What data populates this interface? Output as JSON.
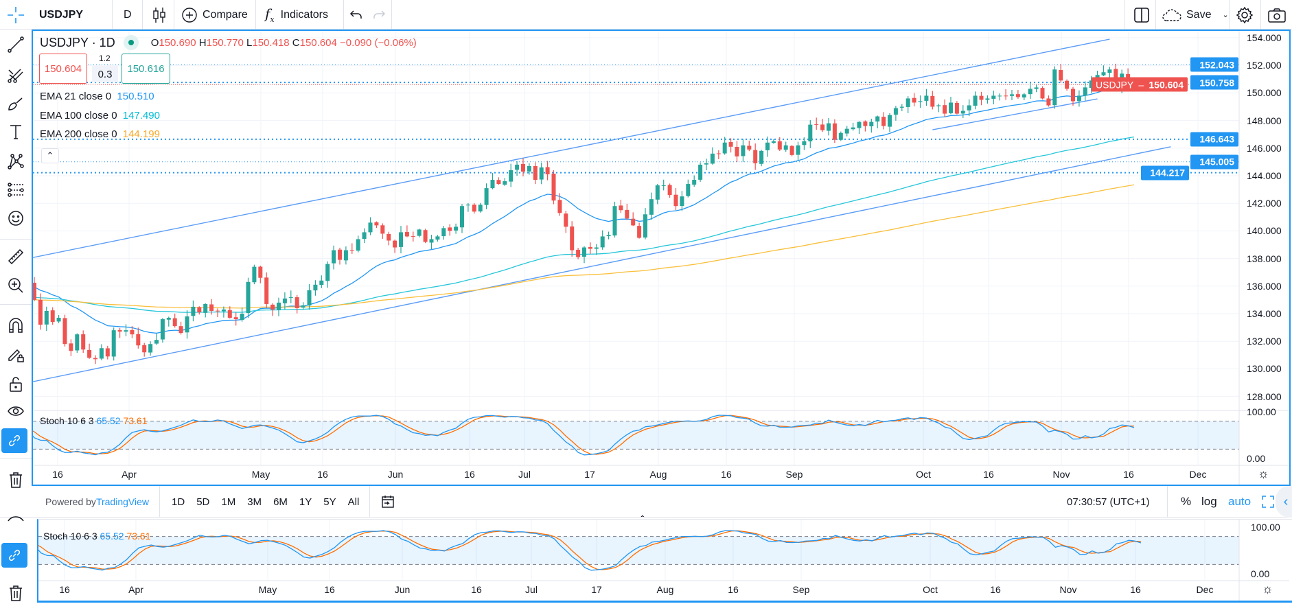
{
  "toolbar": {
    "symbol": "USDJPY",
    "interval": "D",
    "chart_type_icon": "candles-icon",
    "compare_label": "Compare",
    "indicators_label": "Indicators",
    "save_label": "Save"
  },
  "legend": {
    "title": "USDJPY · 1D",
    "o_label": "O",
    "o": "150.690",
    "h_label": "H",
    "h": "150.770",
    "l_label": "L",
    "l": "150.418",
    "c_label": "C",
    "c": "150.604",
    "change": "−0.090 (−0.06%)",
    "sell_price": "150.604",
    "spread_top": "1.2",
    "spread": "0.3",
    "buy_price": "150.616",
    "indicators": [
      {
        "label": "EMA 21 close 0",
        "value": "150.510",
        "color": "#2196f3"
      },
      {
        "label": "EMA 100 close 0",
        "value": "147.490",
        "color": "#00bcd4"
      },
      {
        "label": "EMA 200 close 0",
        "value": "144.199",
        "color": "#f9a825"
      }
    ]
  },
  "price_axis": {
    "ticks": [
      "154.000",
      "152.000",
      "150.000",
      "148.000",
      "146.000",
      "144.000",
      "142.000",
      "140.000",
      "138.000",
      "136.000",
      "134.000",
      "132.000",
      "130.000",
      "128.000"
    ],
    "level_labels": [
      "152.043",
      "150.758",
      "146.643",
      "145.005",
      "144.217"
    ],
    "current_label_symbol": "USDJPY",
    "current_label_price": "150.604"
  },
  "time_axis": {
    "ticks": [
      "16",
      "Apr",
      "May",
      "16",
      "Jun",
      "16",
      "Jul",
      "17",
      "Aug",
      "16",
      "Sep",
      "Oct",
      "16",
      "Nov",
      "16",
      "Dec"
    ]
  },
  "stoch": {
    "label": "Stoch 10 6 3",
    "k": "65.52",
    "d": "73.61",
    "axis_top": "100.00",
    "axis_bottom": "0.00",
    "k_color": "#2196f3",
    "d_color": "#ff6d00"
  },
  "bottombar": {
    "powered_by": "Powered by ",
    "brand": "TradingView",
    "ranges": [
      "1D",
      "5D",
      "1M",
      "3M",
      "6M",
      "1Y",
      "5Y",
      "All"
    ],
    "clock": "07:30:57 (UTC+1)",
    "percent": "%",
    "log": "log",
    "auto": "auto"
  },
  "colors": {
    "up": "#26a69a",
    "down": "#ef5350",
    "accent": "#2196f3",
    "trendline": "#5b9cf6"
  },
  "chart_data": {
    "type": "candlestick",
    "symbol": "USDJPY",
    "interval": "1D",
    "ylim": [
      127,
      155
    ],
    "current_price": 150.604,
    "last_bar": {
      "o": 150.69,
      "h": 150.77,
      "l": 150.418,
      "c": 150.604
    },
    "horizontal_levels": [
      152.043,
      150.758,
      146.643,
      145.005,
      144.217
    ],
    "trend_lines": [
      {
        "from": {
          "date": "03-09",
          "price": 138.0
        },
        "to": {
          "date": "11-13",
          "price": 153.9
        }
      },
      {
        "from": {
          "date": "03-09",
          "price": 129.0
        },
        "to": {
          "date": "11-27",
          "price": 146.1
        }
      },
      {
        "from": {
          "date": "10-03",
          "price": 147.33
        },
        "to": {
          "date": "11-09",
          "price": 149.57
        }
      }
    ],
    "stoch_bands": [
      20,
      80
    ],
    "closes": [
      [
        "03-01",
        136.2
      ],
      [
        "03-02",
        136.7
      ],
      [
        "03-03",
        136.0
      ],
      [
        "03-06",
        135.9
      ],
      [
        "03-07",
        137.2
      ],
      [
        "03-08",
        137.1
      ],
      [
        "03-09",
        136.2
      ],
      [
        "03-10",
        135.0
      ],
      [
        "03-13",
        133.2
      ],
      [
        "03-14",
        134.2
      ],
      [
        "03-15",
        133.4
      ],
      [
        "03-16",
        133.7
      ],
      [
        "03-17",
        131.8
      ],
      [
        "03-20",
        131.3
      ],
      [
        "03-21",
        132.5
      ],
      [
        "03-22",
        131.4
      ],
      [
        "03-23",
        130.8
      ],
      [
        "03-24",
        130.7
      ],
      [
        "03-27",
        131.5
      ],
      [
        "03-28",
        130.9
      ],
      [
        "03-29",
        132.8
      ],
      [
        "03-30",
        132.7
      ],
      [
        "03-31",
        132.8
      ],
      [
        "04-03",
        132.5
      ],
      [
        "04-04",
        131.7
      ],
      [
        "04-05",
        131.2
      ],
      [
        "04-06",
        131.8
      ],
      [
        "04-07",
        132.1
      ],
      [
        "04-10",
        133.6
      ],
      [
        "04-11",
        133.7
      ],
      [
        "04-12",
        133.1
      ],
      [
        "04-13",
        132.6
      ],
      [
        "04-14",
        133.8
      ],
      [
        "04-17",
        134.5
      ],
      [
        "04-18",
        134.1
      ],
      [
        "04-19",
        134.7
      ],
      [
        "04-20",
        134.2
      ],
      [
        "04-21",
        134.2
      ],
      [
        "04-24",
        134.3
      ],
      [
        "04-25",
        133.7
      ],
      [
        "04-26",
        133.6
      ],
      [
        "04-27",
        134.0
      ],
      [
        "04-28",
        136.3
      ],
      [
        "05-01",
        137.4
      ],
      [
        "05-02",
        136.6
      ],
      [
        "05-03",
        134.7
      ],
      [
        "05-04",
        134.3
      ],
      [
        "05-05",
        134.8
      ],
      [
        "05-08",
        135.1
      ],
      [
        "05-09",
        135.2
      ],
      [
        "05-10",
        134.4
      ],
      [
        "05-11",
        134.6
      ],
      [
        "05-12",
        135.7
      ],
      [
        "05-15",
        136.1
      ],
      [
        "05-16",
        136.4
      ],
      [
        "05-17",
        137.6
      ],
      [
        "05-18",
        138.6
      ],
      [
        "05-19",
        137.9
      ],
      [
        "05-22",
        138.6
      ],
      [
        "05-23",
        138.6
      ],
      [
        "05-24",
        139.4
      ],
      [
        "05-25",
        139.9
      ],
      [
        "05-26",
        140.6
      ],
      [
        "05-29",
        140.4
      ],
      [
        "05-30",
        139.8
      ],
      [
        "05-31",
        139.3
      ],
      [
        "06-01",
        138.8
      ],
      [
        "06-02",
        139.9
      ],
      [
        "06-05",
        139.6
      ],
      [
        "06-06",
        139.6
      ],
      [
        "06-07",
        140.1
      ],
      [
        "06-08",
        139.2
      ],
      [
        "06-09",
        139.4
      ],
      [
        "06-12",
        139.6
      ],
      [
        "06-13",
        140.2
      ],
      [
        "06-14",
        140.0
      ],
      [
        "06-15",
        140.3
      ],
      [
        "06-16",
        141.8
      ],
      [
        "06-19",
        141.9
      ],
      [
        "06-20",
        141.4
      ],
      [
        "06-21",
        141.9
      ],
      [
        "06-22",
        143.1
      ],
      [
        "06-23",
        143.7
      ],
      [
        "06-26",
        143.4
      ],
      [
        "06-27",
        143.6
      ],
      [
        "06-28",
        144.4
      ],
      [
        "06-29",
        144.8
      ],
      [
        "06-30",
        144.3
      ],
      [
        "07-03",
        144.7
      ],
      [
        "07-04",
        143.7
      ],
      [
        "07-05",
        144.6
      ],
      [
        "07-06",
        144.1
      ],
      [
        "07-07",
        142.2
      ],
      [
        "07-10",
        141.3
      ],
      [
        "07-11",
        140.3
      ],
      [
        "07-12",
        138.6
      ],
      [
        "07-13",
        138.1
      ],
      [
        "07-14",
        138.8
      ],
      [
        "07-17",
        138.7
      ],
      [
        "07-18",
        138.8
      ],
      [
        "07-19",
        139.6
      ],
      [
        "07-20",
        139.7
      ],
      [
        "07-21",
        141.8
      ],
      [
        "07-24",
        141.5
      ],
      [
        "07-25",
        140.9
      ],
      [
        "07-26",
        140.4
      ],
      [
        "07-27",
        139.5
      ],
      [
        "07-28",
        141.2
      ],
      [
        "07-31",
        142.3
      ],
      [
        "08-01",
        143.3
      ],
      [
        "08-02",
        143.3
      ],
      [
        "08-03",
        142.6
      ],
      [
        "08-04",
        141.8
      ],
      [
        "08-07",
        142.5
      ],
      [
        "08-08",
        143.4
      ],
      [
        "08-09",
        143.7
      ],
      [
        "08-10",
        144.8
      ],
      [
        "08-11",
        144.9
      ],
      [
        "08-14",
        145.6
      ],
      [
        "08-15",
        145.6
      ],
      [
        "08-16",
        146.4
      ],
      [
        "08-17",
        146.1
      ],
      [
        "08-18",
        145.4
      ],
      [
        "08-21",
        146.2
      ],
      [
        "08-22",
        145.9
      ],
      [
        "08-23",
        144.9
      ],
      [
        "08-24",
        145.8
      ],
      [
        "08-25",
        146.4
      ],
      [
        "08-28",
        146.5
      ],
      [
        "08-29",
        145.9
      ],
      [
        "08-30",
        146.2
      ],
      [
        "08-31",
        145.5
      ],
      [
        "09-01",
        146.2
      ],
      [
        "09-04",
        146.5
      ],
      [
        "09-05",
        147.7
      ],
      [
        "09-06",
        147.7
      ],
      [
        "09-07",
        147.3
      ],
      [
        "09-08",
        147.8
      ],
      [
        "09-11",
        146.6
      ],
      [
        "09-12",
        147.1
      ],
      [
        "09-13",
        147.4
      ],
      [
        "09-14",
        147.5
      ],
      [
        "09-15",
        147.9
      ],
      [
        "09-18",
        147.6
      ],
      [
        "09-19",
        147.9
      ],
      [
        "09-20",
        148.3
      ],
      [
        "09-21",
        147.6
      ],
      [
        "09-22",
        148.4
      ],
      [
        "09-25",
        148.9
      ],
      [
        "09-26",
        149.0
      ],
      [
        "09-27",
        149.6
      ],
      [
        "09-28",
        149.3
      ],
      [
        "09-29",
        149.4
      ],
      [
        "10-02",
        149.8
      ],
      [
        "10-03",
        149.0
      ],
      [
        "10-04",
        149.1
      ],
      [
        "10-05",
        148.5
      ],
      [
        "10-06",
        149.3
      ],
      [
        "10-09",
        148.5
      ],
      [
        "10-10",
        148.7
      ],
      [
        "10-11",
        149.1
      ],
      [
        "10-12",
        149.8
      ],
      [
        "10-13",
        149.5
      ],
      [
        "10-16",
        149.6
      ],
      [
        "10-17",
        149.8
      ],
      [
        "10-18",
        149.8
      ],
      [
        "10-19",
        149.8
      ],
      [
        "10-20",
        149.9
      ],
      [
        "10-23",
        149.7
      ],
      [
        "10-24",
        149.9
      ],
      [
        "10-25",
        150.3
      ],
      [
        "10-26",
        150.4
      ],
      [
        "10-27",
        149.6
      ],
      [
        "10-30",
        149.1
      ],
      [
        "10-31",
        151.7
      ],
      [
        "11-01",
        150.9
      ],
      [
        "11-02",
        150.3
      ],
      [
        "11-03",
        149.4
      ],
      [
        "11-06",
        149.8
      ],
      [
        "11-07",
        150.4
      ],
      [
        "11-08",
        150.9
      ],
      [
        "11-09",
        151.3
      ],
      [
        "11-10",
        151.5
      ],
      [
        "11-13",
        151.7
      ],
      [
        "11-14",
        150.4
      ],
      [
        "11-15",
        151.4
      ],
      [
        "11-16",
        150.7
      ],
      [
        "11-17",
        150.604
      ]
    ]
  }
}
